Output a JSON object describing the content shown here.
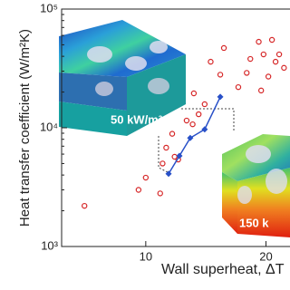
{
  "chart_data": {
    "type": "scatter",
    "xlabel": "Wall superheat, ΔT",
    "ylabel": "Heat transfer coefficient (W/m²K)",
    "xlim": [
      3,
      22
    ],
    "xticks": [
      10,
      20
    ],
    "ylim": [
      1000,
      100000
    ],
    "log_y": true,
    "yticks": [
      {
        "value": 1000,
        "label": "10³"
      },
      {
        "value": 10000,
        "label": "10⁴"
      },
      {
        "value": 100000,
        "label": "10⁵"
      }
    ],
    "annotations": [
      "50 kW/m²",
      "150 k"
    ],
    "series": [
      {
        "style": "markers",
        "color": "#d62728",
        "x": [
          4.9,
          9.4,
          10.0,
          11.2,
          11.4,
          11.7,
          12.2,
          12.4,
          12.7,
          13.4,
          13.9,
          14.4,
          14.0,
          14.9,
          15.4,
          16.2,
          16.5,
          17.7,
          18.4,
          18.7,
          19.4,
          19.6,
          19.8,
          20.2,
          20.5,
          20.8,
          21.1,
          21.5
        ],
        "values": [
          2200,
          3000,
          3800,
          2800,
          5000,
          6800,
          8900,
          5700,
          5400,
          11500,
          10700,
          13000,
          19500,
          15800,
          36000,
          28000,
          47000,
          22000,
          29000,
          38000,
          53000,
          20600,
          41500,
          27000,
          55000,
          36000,
          41500,
          32000
        ]
      },
      {
        "style": "line-markers",
        "color": "#2850c8",
        "x": [
          11.9,
          12.8,
          13.7,
          14.9,
          16.2
        ],
        "values": [
          4100,
          5800,
          8200,
          9700,
          18200
        ]
      }
    ]
  }
}
